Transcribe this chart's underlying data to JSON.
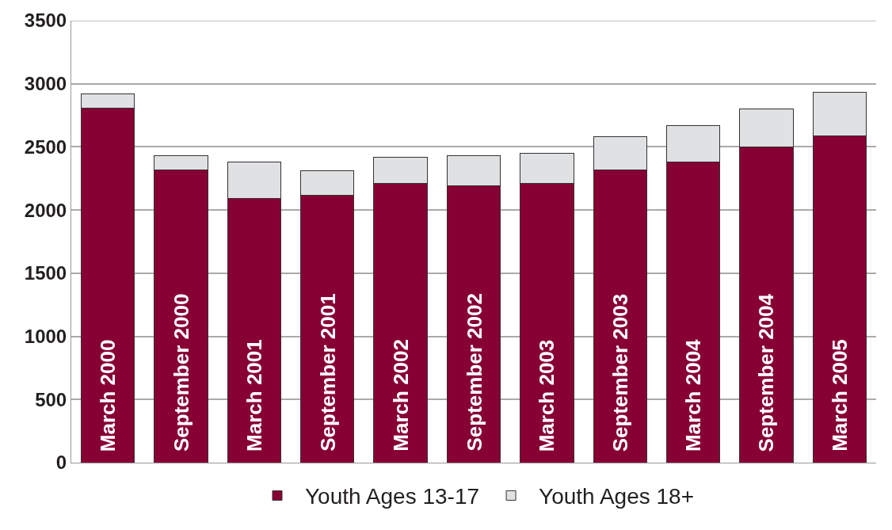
{
  "chart_data": {
    "type": "bar",
    "stacked": true,
    "categories": [
      "March 2000",
      "September 2000",
      "March 2001",
      "September 2001",
      "March 2002",
      "September 2002",
      "March 2003",
      "September 2003",
      "March 2004",
      "September 2004",
      "March 2005"
    ],
    "series": [
      {
        "name": "Youth Ages 13-17",
        "color": "#870034",
        "values": [
          2810,
          2320,
          2090,
          2120,
          2210,
          2190,
          2210,
          2320,
          2380,
          2500,
          2590
        ]
      },
      {
        "name": "Youth Ages 18+",
        "color": "#e0e1e3",
        "values": [
          110,
          110,
          290,
          190,
          210,
          240,
          240,
          260,
          290,
          300,
          340
        ]
      }
    ],
    "ylim": [
      0,
      3500
    ],
    "yticks": [
      0,
      500,
      1000,
      1500,
      2000,
      2500,
      3000,
      3500
    ],
    "grid": "y",
    "legend": "bottom"
  }
}
